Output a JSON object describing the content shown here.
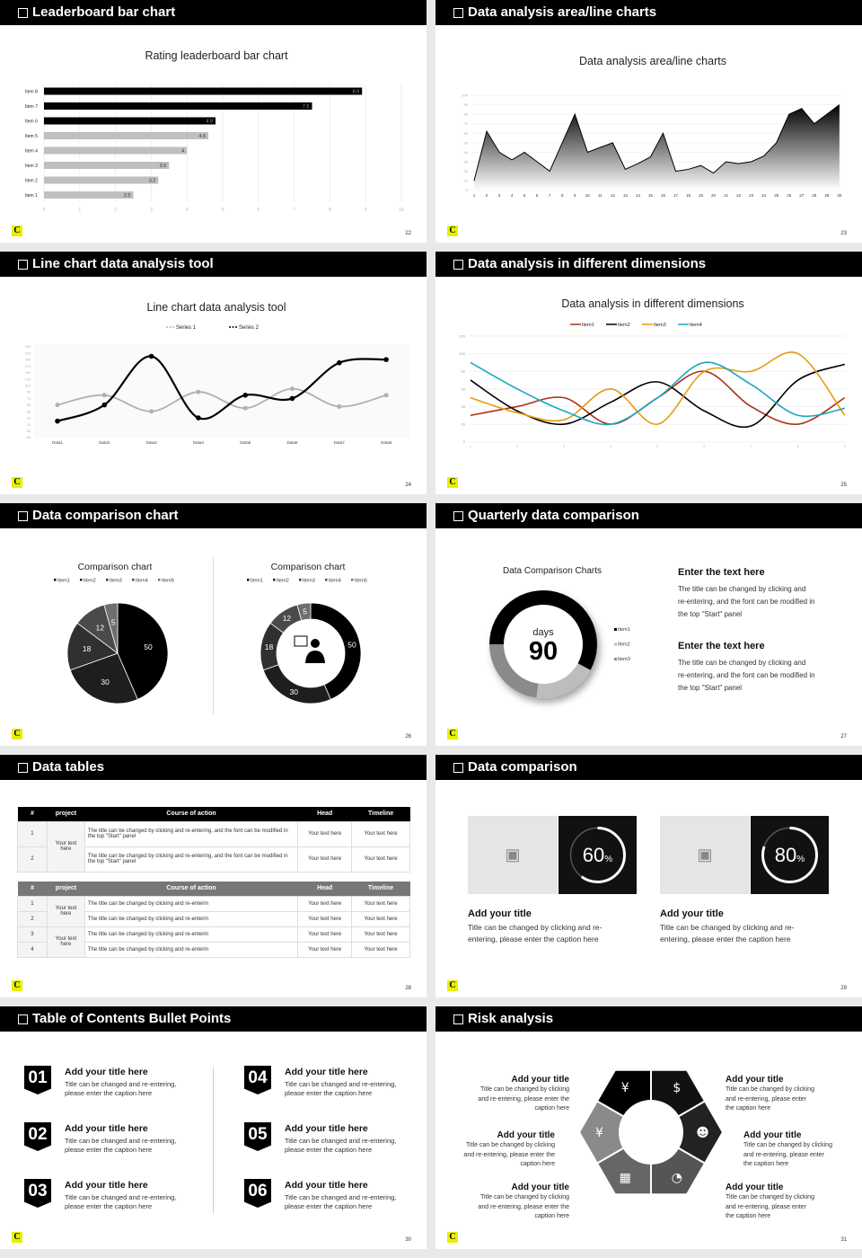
{
  "footer_logo": "C",
  "slides": [
    {
      "title": "Leaderboard bar chart",
      "page": "22"
    },
    {
      "title": "Data analysis area/line charts",
      "page": "23"
    },
    {
      "title": "Line chart data analysis tool",
      "page": "24"
    },
    {
      "title": "Data analysis in different dimensions",
      "page": "25"
    },
    {
      "title": "Data comparison chart",
      "page": "26"
    },
    {
      "title": "Quarterly data comparison",
      "page": "27"
    },
    {
      "title": "Data tables",
      "page": "28"
    },
    {
      "title": "Data comparison",
      "page": "29"
    },
    {
      "title": "Table of Contents Bullet Points",
      "page": "30"
    },
    {
      "title": "Risk analysis",
      "page": "31"
    }
  ],
  "chart_data": [
    {
      "type": "bar",
      "orientation": "horizontal",
      "title": "Rating leaderboard bar chart",
      "categories": [
        "Item 1",
        "Item 2",
        "Item 3",
        "Item 4",
        "Item 5",
        "Item 6",
        "Item 7",
        "Item 8"
      ],
      "values": [
        2.5,
        3.2,
        3.5,
        4,
        4.6,
        4.8,
        7.5,
        8.9
      ],
      "xlim": [
        0,
        10
      ],
      "xticks": [
        "0",
        "1",
        "2",
        "3",
        "4",
        "5",
        "6",
        "7",
        "8",
        "9",
        "10"
      ],
      "colors": {
        "top3": "#000000",
        "rest": "#bfbfbf"
      }
    },
    {
      "type": "area",
      "title": "Data analysis area/line charts",
      "x": [
        1,
        2,
        3,
        4,
        5,
        6,
        7,
        8,
        9,
        10,
        11,
        12,
        13,
        14,
        15,
        16,
        17,
        18,
        19,
        20,
        21,
        22,
        23,
        24,
        25,
        26,
        27,
        28,
        29,
        30
      ],
      "values": [
        10,
        62,
        40,
        32,
        40,
        30,
        20,
        50,
        80,
        40,
        45,
        50,
        22,
        28,
        35,
        60,
        20,
        22,
        26,
        18,
        30,
        28,
        30,
        36,
        50,
        80,
        86,
        70,
        80,
        90
      ],
      "ylim": [
        0,
        100
      ],
      "yticks": [
        "0",
        "10",
        "20",
        "30",
        "40",
        "50",
        "60",
        "70",
        "80",
        "90",
        "100"
      ]
    },
    {
      "type": "line",
      "title": "Line chart data analysis tool",
      "categories": [
        "Data1",
        "Data2",
        "Data3",
        "Data4",
        "Data5",
        "Data6",
        "Data7",
        "Data8"
      ],
      "series": [
        {
          "name": "Series 1",
          "values": [
            50,
            80,
            30,
            90,
            40,
            100,
            45,
            80
          ],
          "color": "#b0b0b0"
        },
        {
          "name": "Series 2",
          "values": [
            0,
            50,
            200,
            10,
            80,
            70,
            180,
            190
          ],
          "color": "#000000"
        }
      ],
      "ylim": [
        -50,
        230
      ],
      "yticks": [
        "230",
        "210",
        "190",
        "170",
        "150",
        "130",
        "110",
        "90",
        "70",
        "50",
        "30",
        "10",
        "-10",
        "-30",
        "-50"
      ]
    },
    {
      "type": "line",
      "title": "Data analysis in different dimensions",
      "x": [
        "1",
        "2",
        "3",
        "4",
        "5",
        "6",
        "7",
        "8",
        "9"
      ],
      "series": [
        {
          "name": "Item1",
          "values": [
            30,
            40,
            50,
            20,
            50,
            80,
            40,
            20,
            50
          ],
          "color": "#a93218"
        },
        {
          "name": "Item2",
          "values": [
            70,
            35,
            20,
            45,
            68,
            35,
            18,
            70,
            88
          ],
          "color": "#000000"
        },
        {
          "name": "Item3",
          "values": [
            50,
            33,
            25,
            60,
            20,
            80,
            80,
            100,
            30
          ],
          "color": "#e69b0e"
        },
        {
          "name": "Item4",
          "values": [
            90,
            60,
            35,
            20,
            50,
            90,
            65,
            30,
            38
          ],
          "color": "#1ba8bd"
        }
      ],
      "ylim": [
        0,
        120
      ],
      "yticks": [
        "0",
        "20",
        "40",
        "60",
        "80",
        "100",
        "120"
      ]
    },
    {
      "type": "pie",
      "title": "Comparison chart",
      "categories": [
        "Item1",
        "Item2",
        "Item3",
        "Item4",
        "Item5"
      ],
      "values": [
        50,
        30,
        18,
        12,
        5
      ],
      "colors": [
        "#000000",
        "#1e1e1e",
        "#303030",
        "#4a4a4a",
        "#6e6e6e"
      ]
    },
    {
      "type": "pie",
      "variant": "donut",
      "title": "Comparison chart",
      "categories": [
        "Item1",
        "Item2",
        "Item3",
        "Item4",
        "Item5"
      ],
      "values": [
        50,
        30,
        18,
        12,
        5
      ],
      "colors": [
        "#000000",
        "#1e1e1e",
        "#303030",
        "#4a4a4a",
        "#6e6e6e"
      ],
      "center_icon": "customer-service-icon"
    },
    {
      "type": "pie",
      "variant": "donut",
      "title": "Data Comparison Charts",
      "categories": [
        "Item1",
        "Item2",
        "Item3"
      ],
      "values": [
        58,
        19,
        23
      ],
      "colors": [
        "#000000",
        "#bdbdbd",
        "#8a8a8a"
      ],
      "center_label": "days",
      "center_value": "90"
    }
  ],
  "quarterly": {
    "blocks": [
      {
        "title": "Enter the text here",
        "lines": [
          "The title can be changed by clicking and",
          "re-entering, and the font can be modified in",
          "the top \"Start\" panel"
        ]
      },
      {
        "title": "Enter the text here",
        "lines": [
          "The title can be changed by clicking and",
          "re-entering, and the font can be modified in",
          "the top \"Start\" panel"
        ]
      }
    ]
  },
  "tables": {
    "headers": [
      "#",
      "project",
      "Course of action",
      "Head",
      "Timeline"
    ],
    "table1": {
      "project": "Your text here",
      "rows": [
        {
          "n": "1",
          "action": "The title can be changed by clicking and re-entering, and the font can be modified in the top \"Start\" panel",
          "head": "Your text here",
          "timeline": "Your text here"
        },
        {
          "n": "2",
          "action": "The title can be changed by clicking and re-entering, and the font can be modified in the top \"Start\" panel",
          "head": "Your text here",
          "timeline": "Your text here"
        }
      ]
    },
    "table2": {
      "projects": [
        "Your text here",
        "Your text here"
      ],
      "rows": [
        {
          "n": "1",
          "action": "The title can be changed by clicking and re-enterin",
          "head": "Your text here",
          "timeline": "Your text here"
        },
        {
          "n": "2",
          "action": "The title can be changed by clicking and re-enterin",
          "head": "Your text here",
          "timeline": "Your text here"
        },
        {
          "n": "3",
          "action": "The title can be changed by clicking and re-enterin",
          "head": "Your text here",
          "timeline": "Your text here"
        },
        {
          "n": "4",
          "action": "The title can be changed by clicking and re-enterin",
          "head": "Your text here",
          "timeline": "Your text here"
        }
      ]
    }
  },
  "comparison": {
    "cards": [
      {
        "percent": 60,
        "value": "60",
        "unit": "%",
        "title": "Add your title",
        "lines": [
          "Title can be changed by clicking and re-",
          "entering, please enter the caption here"
        ],
        "icon": "image-add-icon"
      },
      {
        "percent": 80,
        "value": "80",
        "unit": "%",
        "title": "Add your title",
        "lines": [
          "Title can be changed by clicking and re-",
          "entering, please enter the caption here"
        ],
        "icon": "image-add-icon"
      }
    ]
  },
  "toc": {
    "items": [
      {
        "num": "01",
        "title": "Add your title here",
        "lines": [
          "Title can be changed and re-entering,",
          "please enter the caption here"
        ]
      },
      {
        "num": "02",
        "title": "Add your title here",
        "lines": [
          "Title can be changed and re-entering,",
          "please enter the caption here"
        ]
      },
      {
        "num": "03",
        "title": "Add your title here",
        "lines": [
          "Title can be changed and re-entering,",
          "please enter the caption here"
        ]
      },
      {
        "num": "04",
        "title": "Add your title here",
        "lines": [
          "Title can be changed and re-entering,",
          "please enter the caption here"
        ]
      },
      {
        "num": "05",
        "title": "Add your title here",
        "lines": [
          "Title can be changed and re-entering,",
          "please enter the caption here"
        ]
      },
      {
        "num": "06",
        "title": "Add your title here",
        "lines": [
          "Title can be changed and re-entering,",
          "please enter the caption here"
        ]
      }
    ]
  },
  "risk": {
    "items": [
      {
        "title": "Add your title",
        "lines": [
          "Title can be changed by clicking",
          "and re-entering, please enter the",
          "caption here"
        ]
      },
      {
        "title": "Add your title",
        "lines": [
          "Title can be changed by clicking",
          "and re-entering, please enter the",
          "caption here"
        ]
      },
      {
        "title": "Add your title",
        "lines": [
          "Title can be changed by clicking",
          "and re-entering, please enter the",
          "caption here"
        ]
      },
      {
        "title": "Add your title",
        "lines": [
          "Title can be changed by clicking",
          "and re-entering, please enter",
          "the caption here"
        ]
      },
      {
        "title": "Add your title",
        "lines": [
          "Title can be changed by clicking",
          "and re-entering, please enter",
          "the caption here"
        ]
      },
      {
        "title": "Add your title",
        "lines": [
          "Title can be changed by clicking",
          "and re-entering, please enter",
          "the caption here"
        ]
      }
    ],
    "segments": [
      {
        "icon": "people-icon",
        "glyph": "☻",
        "color": "#222222"
      },
      {
        "icon": "pie-chart-icon",
        "glyph": "◔",
        "color": "#555555"
      },
      {
        "icon": "building-icon",
        "glyph": "▦",
        "color": "#666666"
      },
      {
        "icon": "yen-hand-icon",
        "glyph": "¥",
        "color": "#8a8a8a"
      },
      {
        "icon": "money-bag-icon",
        "glyph": "¥",
        "color": "#000000"
      },
      {
        "icon": "coins-icon",
        "glyph": "$",
        "color": "#111111"
      }
    ]
  }
}
